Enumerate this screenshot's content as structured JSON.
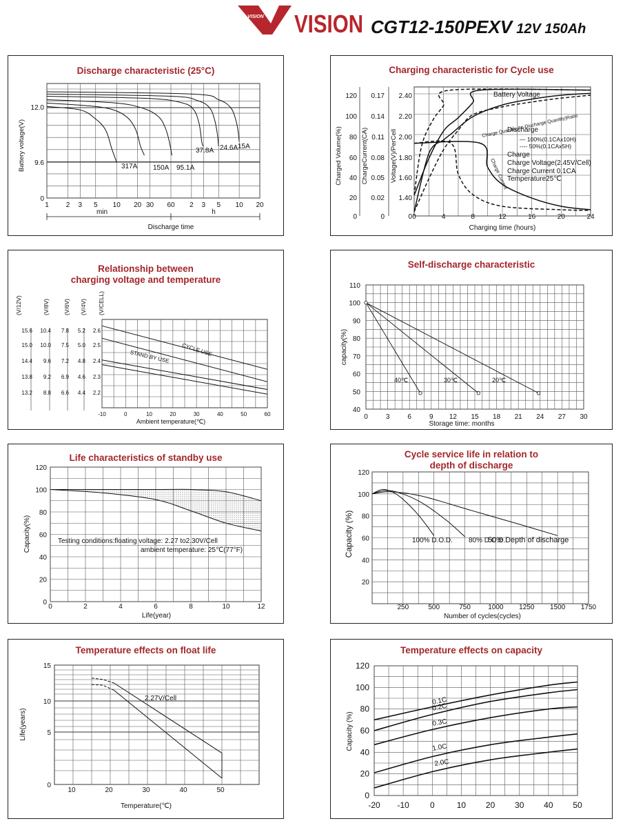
{
  "header": {
    "logo_word": "VISION",
    "logo_small": "VISION",
    "model": "CGT12-150PEXV",
    "spec": "12V 150Ah",
    "brand_color": "#b7262c"
  },
  "chart_data": [
    {
      "id": "discharge",
      "type": "line",
      "title": "Discharge characteristic (25°C)",
      "xlabel": "Discharge time",
      "ylabel": "Battery voltage(V)",
      "x_scale": "log",
      "x_ticks": [
        "1",
        "2",
        "3",
        "5",
        "10",
        "20",
        "30",
        "60",
        "2",
        "3",
        "5",
        "10",
        "20"
      ],
      "x_units": {
        "min": "min",
        "h": "h"
      },
      "y_ticks": [
        "0",
        "9.6",
        "12.0"
      ],
      "series": [
        {
          "name": "317A",
          "points": [
            [
              1,
              12.05
            ],
            [
              3,
              11.9
            ],
            [
              5,
              11.5
            ],
            [
              7,
              11.0
            ],
            [
              8.5,
              10.2
            ],
            [
              10,
              9.6
            ]
          ]
        },
        {
          "name": "150A",
          "points": [
            [
              1,
              12.2
            ],
            [
              5,
              12.05
            ],
            [
              10,
              11.85
            ],
            [
              15,
              11.5
            ],
            [
              19,
              11.0
            ],
            [
              22,
              10.3
            ],
            [
              25,
              9.9
            ]
          ]
        },
        {
          "name": "95.1A",
          "points": [
            [
              1,
              12.35
            ],
            [
              10,
              12.2
            ],
            [
              25,
              11.95
            ],
            [
              40,
              11.6
            ],
            [
              50,
              11.1
            ],
            [
              57,
              10.5
            ],
            [
              62,
              9.9
            ]
          ]
        },
        {
          "name": "37.8A",
          "points": [
            [
              1,
              12.5
            ],
            [
              30,
              12.4
            ],
            [
              90,
              12.2
            ],
            [
              130,
              11.9
            ],
            [
              155,
              11.3
            ],
            [
              170,
              10.5
            ],
            [
              178,
              10.3
            ]
          ]
        },
        {
          "name": "24.6A",
          "points": [
            [
              1,
              12.6
            ],
            [
              60,
              12.5
            ],
            [
              150,
              12.3
            ],
            [
              220,
              12.0
            ],
            [
              260,
              11.5
            ],
            [
              285,
              10.9
            ],
            [
              300,
              10.3
            ]
          ]
        },
        {
          "name": "15A",
          "points": [
            [
              1,
              12.7
            ],
            [
              120,
              12.6
            ],
            [
              300,
              12.35
            ],
            [
              450,
              12.0
            ],
            [
              530,
              11.5
            ],
            [
              575,
              11.0
            ],
            [
              600,
              10.5
            ]
          ]
        }
      ]
    },
    {
      "id": "charging",
      "type": "line",
      "title": "Charging characteristic for Cycle use",
      "xlabel": "Charging time (hours)",
      "x_ticks": [
        "0",
        "4",
        "8",
        "12",
        "16",
        "20",
        "24"
      ],
      "y_axes": [
        {
          "label": "Charged Volume(%)",
          "ticks": [
            "0",
            "20",
            "40",
            "60",
            "80",
            "100",
            "120"
          ]
        },
        {
          "label": "ChargeCurrent(CA)",
          "ticks": [
            "0",
            "0.02",
            "0.05",
            "0.08",
            "0.11",
            "0.14",
            "0.17"
          ]
        },
        {
          "label": "Voltage(V)/PerCell",
          "ticks": [
            "0",
            "1.40",
            "1.60",
            "1.80",
            "2.00",
            "2.20",
            "2.40"
          ]
        }
      ],
      "labels": {
        "battery_voltage": "Battery Voltage",
        "charge_quantity": "Charge Quantity (to-Discharge Quantity)Ratio",
        "charge_current": "Charge Current",
        "legend": [
          "Discharge",
          "— 100%(0.1CAx10H)",
          "---- 50%(0.1CAx5H)",
          "Charge",
          "Charge Voltage(2.45V/Cell)",
          "Charge Current 0.1CA",
          "Temperature25℃"
        ]
      },
      "series": [
        {
          "name": "Battery Voltage",
          "unit": "V",
          "points": [
            [
              0,
              1.42
            ],
            [
              2,
              1.78
            ],
            [
              4,
              2.05
            ],
            [
              6,
              2.18
            ],
            [
              8,
              2.33
            ],
            [
              9,
              2.45
            ],
            [
              24,
              2.45
            ]
          ]
        },
        {
          "name": "Battery Voltage",
          "unit": "V",
          "dashed": true,
          "points": [
            [
              0,
              1.42
            ],
            [
              1,
              1.9
            ],
            [
              2.5,
              2.15
            ],
            [
              4,
              2.3
            ],
            [
              5,
              2.45
            ],
            [
              24,
              2.45
            ]
          ]
        },
        {
          "name": "Charge Quantity (to-Discharge Quantity)Ratio",
          "unit": "%",
          "points": [
            [
              0,
              0
            ],
            [
              2,
              60
            ],
            [
              4,
              74
            ],
            [
              5,
              80
            ],
            [
              8,
              98
            ],
            [
              12,
              110
            ],
            [
              16,
              116
            ],
            [
              20,
              120
            ],
            [
              24,
              122
            ]
          ]
        },
        {
          "name": "Charge Quantity (to-Discharge Quantity)Ratio",
          "unit": "%",
          "dashed": true,
          "points": [
            [
              0,
              0
            ],
            [
              2,
              34
            ],
            [
              4,
              64
            ],
            [
              6,
              84
            ],
            [
              8,
              100
            ],
            [
              12,
              108
            ],
            [
              16,
              113
            ],
            [
              20,
              117
            ],
            [
              24,
              120
            ]
          ]
        },
        {
          "name": "Charge Current",
          "unit": "CA",
          "points": [
            [
              0,
              0.1
            ],
            [
              9,
              0.1
            ],
            [
              10,
              0.065
            ],
            [
              12,
              0.04
            ],
            [
              16,
              0.02
            ],
            [
              20,
              0.008
            ],
            [
              24,
              0.003
            ]
          ]
        },
        {
          "name": "Charge Current",
          "unit": "CA",
          "dashed": true,
          "points": [
            [
              0,
              0.1
            ],
            [
              5,
              0.1
            ],
            [
              6,
              0.055
            ],
            [
              8,
              0.025
            ],
            [
              12,
              0.008
            ],
            [
              20,
              0.003
            ],
            [
              24,
              0.002
            ]
          ]
        }
      ]
    },
    {
      "id": "voltage-temp",
      "type": "line",
      "title": "Relationship between\ncharging voltage and temperature",
      "xlabel": "Ambient temperature(℃)",
      "x_ticks": [
        "-10",
        "0",
        "10",
        "20",
        "30",
        "40",
        "50",
        "60"
      ],
      "scales": [
        {
          "unit": "(V/12V)",
          "ticks": [
            "13.2",
            "13.8",
            "14.4",
            "15.0",
            "15.6"
          ]
        },
        {
          "unit": "(V/8V)",
          "ticks": [
            "8.8",
            "9.2",
            "9.6",
            "10.0",
            "10.4"
          ]
        },
        {
          "unit": "(V/6V)",
          "ticks": [
            "6.6",
            "6.9",
            "7.2",
            "7.5",
            "7.8"
          ]
        },
        {
          "unit": "(V/4V)",
          "ticks": [
            "4.4",
            "4.6",
            "4.8",
            "5.0",
            "5.2"
          ]
        },
        {
          "unit": "(V/CELL)",
          "ticks": [
            "2.2",
            "2.3",
            "2.4",
            "2.5",
            "2.6"
          ]
        }
      ],
      "series": [
        {
          "name": "CYCLE USE",
          "band": [
            [
              [
                -10,
                2.63
              ],
              [
                60,
                2.35
              ]
            ],
            [
              [
                -10,
                2.55
              ],
              [
                60,
                2.27
              ]
            ]
          ]
        },
        {
          "name": "STAND BY USE",
          "band": [
            [
              [
                -10,
                2.41
              ],
              [
                60,
                2.22
              ]
            ],
            [
              [
                -10,
                2.38
              ],
              [
                60,
                2.19
              ]
            ]
          ]
        }
      ]
    },
    {
      "id": "self-discharge",
      "type": "line",
      "title": "Self-discharge characteristic",
      "xlabel": "Storage time: months",
      "ylabel": "capacity(%)",
      "x_ticks": [
        "0",
        "3",
        "6",
        "9",
        "12",
        "15",
        "18",
        "21",
        "24",
        "27",
        "30"
      ],
      "y_ticks": [
        "40",
        "50",
        "60",
        "70",
        "80",
        "90",
        "100",
        "110"
      ],
      "series": [
        {
          "name": "40℃",
          "points": [
            [
              0,
              100
            ],
            [
              7.5,
              49
            ]
          ]
        },
        {
          "name": "30℃",
          "points": [
            [
              0,
              100
            ],
            [
              15.5,
              49
            ]
          ]
        },
        {
          "name": "20℃",
          "points": [
            [
              0,
              100
            ],
            [
              23.8,
              49
            ]
          ]
        }
      ]
    },
    {
      "id": "standby-life",
      "type": "area",
      "title": "Life characteristics of standby use",
      "xlabel": "Life(year)",
      "ylabel": "Capacity(%)",
      "x_ticks": [
        "0",
        "2",
        "4",
        "6",
        "8",
        "10",
        "12"
      ],
      "y_ticks": [
        "0",
        "20",
        "40",
        "60",
        "80",
        "100",
        "120"
      ],
      "conditions": [
        "Testing conditions:floating voltage: 2.27 to2.30V/Cell",
        "ambient temperature: 25℃(77°F)"
      ],
      "series": [
        {
          "name": "upper",
          "points": [
            [
              0,
              100
            ],
            [
              3,
              100
            ],
            [
              6,
              100
            ],
            [
              8,
              100
            ],
            [
              10,
              98
            ],
            [
              12,
              90
            ]
          ]
        },
        {
          "name": "lower",
          "points": [
            [
              0,
              100
            ],
            [
              3,
              97
            ],
            [
              6,
              91
            ],
            [
              8,
              81
            ],
            [
              10,
              70
            ],
            [
              12,
              63
            ]
          ]
        }
      ]
    },
    {
      "id": "cycle-life",
      "type": "line",
      "title": "Cycle service life in relation to\ndepth of discharge",
      "xlabel": "Number of cycles(cycles)",
      "ylabel": "Capacity (%)",
      "x_ticks": [
        "250",
        "500",
        "750",
        "1000",
        "1250",
        "1500",
        "1750"
      ],
      "y_ticks": [
        "20",
        "40",
        "60",
        "80",
        "100",
        "120"
      ],
      "series": [
        {
          "name": "100% D.O.D.",
          "points": [
            [
              0,
              100
            ],
            [
              80,
              104
            ],
            [
              160,
              102
            ],
            [
              250,
              95
            ],
            [
              380,
              80
            ],
            [
              500,
              62
            ]
          ]
        },
        {
          "name": "80% D.O.D.",
          "points": [
            [
              0,
              100
            ],
            [
              100,
              103
            ],
            [
              220,
              101
            ],
            [
              400,
              92
            ],
            [
              600,
              76
            ],
            [
              750,
              61
            ]
          ]
        },
        {
          "name": "50% Depth of  discharge",
          "points": [
            [
              0,
              100
            ],
            [
              150,
              102
            ],
            [
              400,
              98
            ],
            [
              800,
              85
            ],
            [
              1200,
              72
            ],
            [
              1500,
              62
            ]
          ]
        }
      ]
    },
    {
      "id": "float-life",
      "type": "line",
      "title": "Temperature effects on float life",
      "xlabel": "Temperature(℃)",
      "ylabel": "Life(years)",
      "x_ticks": [
        "10",
        "20",
        "30",
        "40",
        "50"
      ],
      "y_ticks": [
        "0",
        "5",
        "10",
        "15"
      ],
      "series": [
        {
          "name": "2.27V/Cell",
          "band": [
            [
              [
                15,
                13.2
              ],
              [
                18,
                13.0
              ],
              [
                21,
                12.5
              ],
              [
                50,
                3.0
              ]
            ],
            [
              [
                15,
                12.3
              ],
              [
                18,
                12.2
              ],
              [
                21,
                11.5
              ],
              [
                50,
                0.6
              ]
            ]
          ]
        }
      ]
    },
    {
      "id": "temp-capacity",
      "type": "line",
      "title": "Temperature effects on capacity",
      "ylabel": "Capacity (%)",
      "x_ticks": [
        "-20",
        "-10",
        "0",
        "10",
        "20",
        "30",
        "40",
        "50"
      ],
      "y_ticks": [
        "0",
        "20",
        "40",
        "60",
        "80",
        "100",
        "120"
      ],
      "series": [
        {
          "name": "0.1C",
          "points": [
            [
              -20,
              70
            ],
            [
              0,
              82
            ],
            [
              20,
              93
            ],
            [
              40,
              102
            ],
            [
              50,
              105
            ]
          ]
        },
        {
          "name": "0.2C",
          "points": [
            [
              -20,
              60
            ],
            [
              0,
              75
            ],
            [
              20,
              87
            ],
            [
              40,
              95
            ],
            [
              50,
              98
            ]
          ]
        },
        {
          "name": "0.3C",
          "points": [
            [
              -20,
              47
            ],
            [
              0,
              61
            ],
            [
              20,
              72
            ],
            [
              40,
              80
            ],
            [
              50,
              82
            ]
          ]
        },
        {
          "name": "1.0C",
          "points": [
            [
              -20,
              21
            ],
            [
              0,
              36
            ],
            [
              20,
              47
            ],
            [
              40,
              54
            ],
            [
              50,
              57
            ]
          ]
        },
        {
          "name": "2.0C",
          "points": [
            [
              -20,
              7
            ],
            [
              0,
              22
            ],
            [
              20,
              33
            ],
            [
              40,
              40
            ],
            [
              50,
              43
            ]
          ]
        }
      ]
    }
  ]
}
